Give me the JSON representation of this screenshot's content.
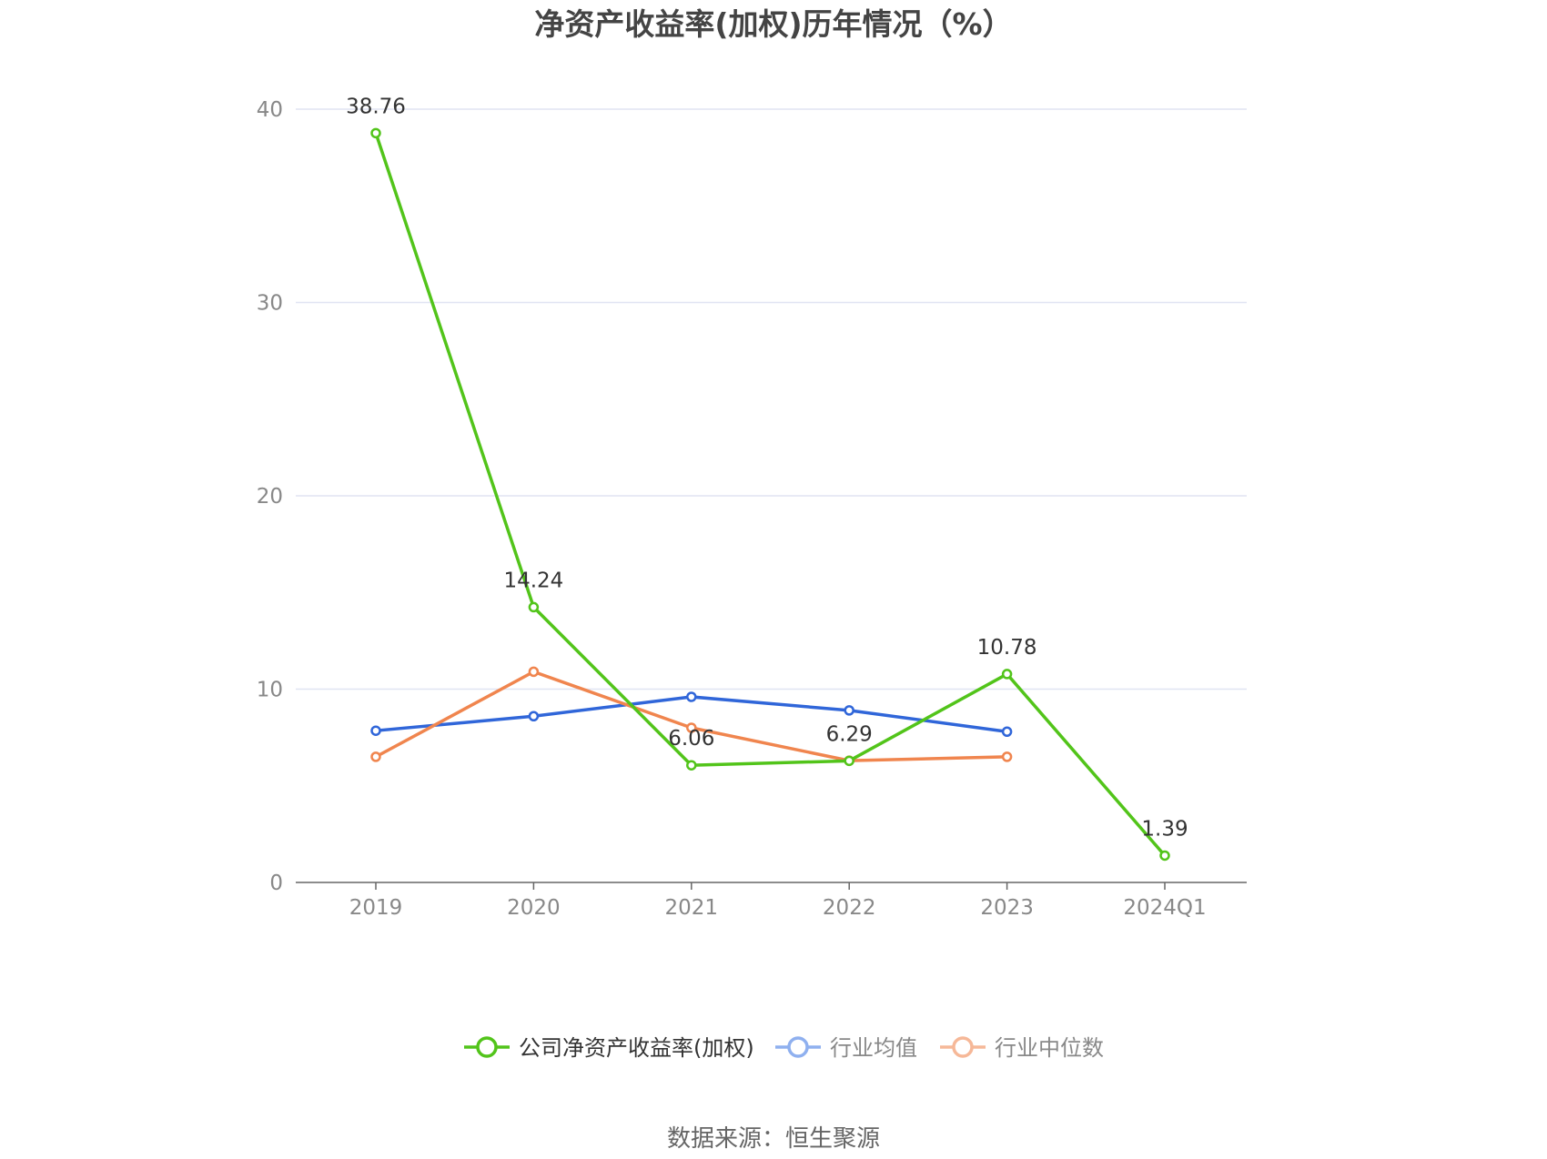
{
  "chart_data": {
    "type": "line",
    "title": "净资产收益率(加权)历年情况（%）",
    "categories": [
      "2019",
      "2020",
      "2021",
      "2022",
      "2023",
      "2024Q1"
    ],
    "ylim": [
      0,
      40
    ],
    "yticks": [
      "0",
      "10",
      "20",
      "30",
      "40"
    ],
    "grid": true,
    "legend_placement": "bottom",
    "series": [
      {
        "name": "公司净资产收益率(加权)",
        "color": "#52c41a",
        "values": [
          38.76,
          14.24,
          6.06,
          6.29,
          10.78,
          1.39
        ],
        "labels": [
          "38.76",
          "14.24",
          "6.06",
          "6.29",
          "10.78",
          "1.39"
        ]
      },
      {
        "name": "行业均值",
        "color": "#3066d9",
        "legend_color": "#8fb0ef",
        "values": [
          7.85,
          8.6,
          9.6,
          8.9,
          7.8,
          null
        ]
      },
      {
        "name": "行业中位数",
        "color": "#f0854e",
        "legend_color": "#f6b898",
        "values": [
          6.5,
          10.9,
          8.0,
          6.3,
          6.5,
          null
        ]
      }
    ],
    "source": "数据来源：恒生聚源"
  }
}
